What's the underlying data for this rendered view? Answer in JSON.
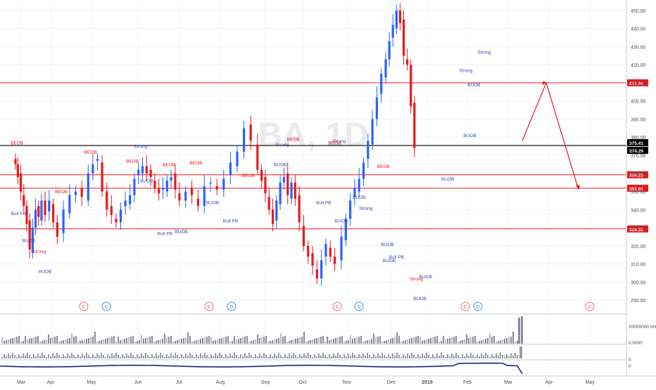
{
  "watermark": "BA, 1D",
  "chart_data": {
    "type": "candlestick",
    "symbol": "BA",
    "interval": "1D",
    "ylim": [
      285,
      455
    ],
    "y_ticks": [
      290,
      300,
      310,
      320,
      330,
      340,
      350,
      360,
      370,
      380,
      390,
      400,
      410,
      420,
      430,
      440,
      450
    ],
    "y_tick_labels": [
      "290.00",
      "300.00",
      "310.00",
      "320.00",
      "330.00",
      "340.00",
      "350.00",
      "360.00",
      "370.00",
      "380.00",
      "390.00",
      "400.00",
      "410.00",
      "420.00",
      "430.00",
      "440.00",
      "450.00"
    ],
    "x_labels": [
      "Mar",
      "Apr",
      "May",
      "Jun",
      "Jul",
      "Aug",
      "Sep",
      "Oct",
      "Nov",
      "Dec",
      "2019",
      "Feb",
      "Mar",
      "Apr",
      "May"
    ],
    "horizontal_levels": [
      {
        "value": 410.04,
        "label": "410.04",
        "color": "#e8191b"
      },
      {
        "value": 375.41,
        "label": "375.41",
        "color": "#000000"
      },
      {
        "value": 374.29,
        "label": "374.29",
        "color": "#000000"
      },
      {
        "value": 359.23,
        "label": "359.23",
        "color": "#e8191b"
      },
      {
        "value": 351.81,
        "label": "351.81",
        "color": "#e8191b"
      },
      {
        "value": 329.33,
        "label": "329.33",
        "color": "#e8191b"
      }
    ],
    "projection": [
      {
        "label": "Mar",
        "value": 378
      },
      {
        "label": "Apr",
        "value": 410
      },
      {
        "label": "Apr-May",
        "value": 351
      }
    ],
    "candle_closes": [
      [
        0,
        365
      ],
      [
        0.08,
        358
      ],
      [
        0.18,
        350
      ],
      [
        0.28,
        342
      ],
      [
        0.38,
        332
      ],
      [
        0.48,
        318
      ],
      [
        0.58,
        330
      ],
      [
        0.68,
        340
      ],
      [
        0.78,
        336
      ],
      [
        0.88,
        345
      ],
      [
        1,
        337
      ],
      [
        1.1,
        345
      ],
      [
        1.2,
        333
      ],
      [
        1.3,
        325
      ],
      [
        1.45,
        340
      ],
      [
        1.6,
        348
      ],
      [
        1.75,
        350
      ],
      [
        1.9,
        347
      ],
      [
        2.05,
        360
      ],
      [
        2.15,
        365
      ],
      [
        2.25,
        368
      ],
      [
        2.35,
        350
      ],
      [
        2.45,
        340
      ],
      [
        2.55,
        337
      ],
      [
        2.65,
        333
      ],
      [
        2.75,
        340
      ],
      [
        2.85,
        345
      ],
      [
        2.95,
        348
      ],
      [
        3.05,
        357
      ],
      [
        3.15,
        362
      ],
      [
        3.25,
        364
      ],
      [
        3.35,
        360
      ],
      [
        3.45,
        358
      ],
      [
        3.55,
        352
      ],
      [
        3.65,
        349
      ],
      [
        3.75,
        352
      ],
      [
        3.85,
        356
      ],
      [
        3.95,
        358
      ],
      [
        4.05,
        351
      ],
      [
        4.15,
        345
      ],
      [
        4.3,
        350
      ],
      [
        4.45,
        348
      ],
      [
        4.6,
        342
      ],
      [
        4.75,
        353
      ],
      [
        4.9,
        355
      ],
      [
        5.05,
        351
      ],
      [
        5.2,
        357
      ],
      [
        5.35,
        366
      ],
      [
        5.5,
        372
      ],
      [
        5.65,
        385
      ],
      [
        5.8,
        378
      ],
      [
        5.95,
        362
      ],
      [
        6.05,
        356
      ],
      [
        6.15,
        349
      ],
      [
        6.25,
        340
      ],
      [
        6.35,
        332
      ],
      [
        6.45,
        345
      ],
      [
        6.55,
        355
      ],
      [
        6.65,
        358
      ],
      [
        6.75,
        348
      ],
      [
        6.85,
        355
      ],
      [
        6.95,
        346
      ],
      [
        7.05,
        333
      ],
      [
        7.15,
        320
      ],
      [
        7.25,
        314
      ],
      [
        7.35,
        309
      ],
      [
        7.45,
        302
      ],
      [
        7.55,
        312
      ],
      [
        7.65,
        321
      ],
      [
        7.75,
        314
      ],
      [
        7.85,
        310
      ],
      [
        8.0,
        325
      ],
      [
        8.1,
        335
      ],
      [
        8.2,
        345
      ],
      [
        8.3,
        352
      ],
      [
        8.4,
        357
      ],
      [
        8.5,
        366
      ],
      [
        8.6,
        378
      ],
      [
        8.7,
        390
      ],
      [
        8.8,
        402
      ],
      [
        8.9,
        415
      ],
      [
        9.0,
        423
      ],
      [
        9.1,
        433
      ],
      [
        9.2,
        442
      ],
      [
        9.3,
        450
      ],
      [
        9.4,
        443
      ],
      [
        9.5,
        425
      ],
      [
        9.6,
        420
      ],
      [
        9.7,
        397
      ],
      [
        9.8,
        374
      ]
    ],
    "volume_label": "20000000.0000",
    "oscillator_label": "0.0000",
    "rsi_label": "0",
    "event_markers": [
      {
        "text": "E",
        "color": "#e57373"
      },
      {
        "text": "D",
        "color": "#4a90d9"
      },
      {
        "text": "E",
        "color": "#e57373"
      },
      {
        "text": "D",
        "color": "#4a90d9"
      },
      {
        "text": "E",
        "color": "#e57373"
      },
      {
        "text": "D",
        "color": "#4a90d9"
      },
      {
        "text": "E",
        "color": "#e57373"
      },
      {
        "text": "D",
        "color": "#4a90d9"
      },
      {
        "text": "E",
        "color": "#e57373"
      }
    ],
    "annotations": [
      {
        "text": "BEOB",
        "color": "#e8191b",
        "x": 0.05,
        "y": 376
      },
      {
        "text": "Bull PB",
        "color": "#3949ab",
        "x": 0.1,
        "y": 337
      },
      {
        "text": "BUOB",
        "color": "#3949ab",
        "x": 0.45,
        "y": 322
      },
      {
        "text": "Strong",
        "color": "#e8191b",
        "x": 0.8,
        "y": 316
      },
      {
        "text": "BUOB",
        "color": "#3949ab",
        "x": 1.0,
        "y": 305
      },
      {
        "text": "BEOB",
        "color": "#e8191b",
        "x": 1.4,
        "y": 349
      },
      {
        "text": "BEOB",
        "color": "#e8191b",
        "x": 2.1,
        "y": 371
      },
      {
        "text": "Strong",
        "color": "#3949ab",
        "x": 3.2,
        "y": 374
      },
      {
        "text": "BEOB",
        "color": "#e8191b",
        "x": 3.0,
        "y": 366
      },
      {
        "text": "BUOB",
        "color": "#3949ab",
        "x": 3.35,
        "y": 355
      },
      {
        "text": "BEOB",
        "color": "#e8191b",
        "x": 3.9,
        "y": 364
      },
      {
        "text": "Bull PB",
        "color": "#3949ab",
        "x": 3.8,
        "y": 326
      },
      {
        "text": "BUOB",
        "color": "#3949ab",
        "x": 4.2,
        "y": 327
      },
      {
        "text": "BEOB",
        "color": "#e8191b",
        "x": 4.55,
        "y": 365
      },
      {
        "text": "BUOB",
        "color": "#3949ab",
        "x": 4.95,
        "y": 343
      },
      {
        "text": "Bull PB",
        "color": "#3949ab",
        "x": 5.35,
        "y": 333
      },
      {
        "text": "BEOB",
        "color": "#e8191b",
        "x": 5.75,
        "y": 358
      },
      {
        "text": "Strong",
        "color": "#3949ab",
        "x": 6.6,
        "y": 375
      },
      {
        "text": "BUOB",
        "color": "#3949ab",
        "x": 6.55,
        "y": 364
      },
      {
        "text": "BEOB",
        "color": "#e8191b",
        "x": 6.9,
        "y": 378
      },
      {
        "text": "Bull PB",
        "color": "#3949ab",
        "x": 7.6,
        "y": 343
      },
      {
        "text": "BUOB",
        "color": "#3949ab",
        "x": 8.0,
        "y": 333
      },
      {
        "text": "Strong",
        "color": "#3949ab",
        "x": 7.95,
        "y": 377
      },
      {
        "text": "BEOB",
        "color": "#e8191b",
        "x": 7.85,
        "y": 376
      },
      {
        "text": "BUOB",
        "color": "#3949ab",
        "x": 8.4,
        "y": 346
      },
      {
        "text": "Strong",
        "color": "#3949ab",
        "x": 8.55,
        "y": 340
      },
      {
        "text": "BEOB",
        "color": "#e8191b",
        "x": 8.95,
        "y": 363
      },
      {
        "text": "BUOB",
        "color": "#3949ab",
        "x": 9.05,
        "y": 320
      },
      {
        "text": "Bull PB",
        "color": "#3949ab",
        "x": 9.3,
        "y": 313
      },
      {
        "text": "BUOB",
        "color": "#3949ab",
        "x": 9.1,
        "y": 311
      },
      {
        "text": "Strong",
        "color": "#e8191b",
        "x": 9.85,
        "y": 301
      },
      {
        "text": "BUOB",
        "color": "#3949ab",
        "x": 9.95,
        "y": 290
      },
      {
        "text": "BUOB",
        "color": "#3949ab",
        "x": 10.1,
        "y": 302
      },
      {
        "text": "BUOB",
        "color": "#3949ab",
        "x": 10.65,
        "y": 356
      },
      {
        "text": "BUOB",
        "color": "#3949ab",
        "x": 11.2,
        "y": 380
      },
      {
        "text": "Strong",
        "color": "#3949ab",
        "x": 11.1,
        "y": 416
      },
      {
        "text": "BUOB",
        "color": "#3949ab",
        "x": 11.3,
        "y": 408
      },
      {
        "text": "Strong",
        "color": "#3949ab",
        "x": 11.55,
        "y": 426
      }
    ]
  }
}
